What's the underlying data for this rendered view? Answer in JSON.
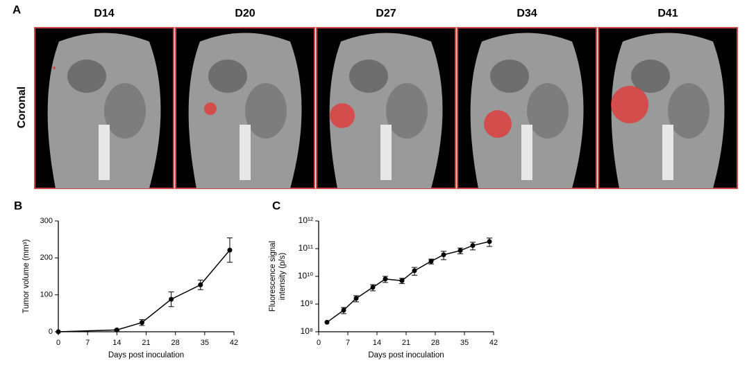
{
  "figure": {
    "panel_a": "A",
    "panel_b": "B",
    "panel_c": "C",
    "view": "Coronal",
    "days": [
      "D14",
      "D20",
      "D27",
      "D34",
      "D41"
    ]
  },
  "chart_data": [
    {
      "type": "line",
      "xlabel": "Days post inoculation",
      "ylabel": [
        "Tumor volume (mm³)"
      ],
      "x": [
        0,
        14,
        20,
        27,
        34,
        41
      ],
      "xlim": [
        0,
        42
      ],
      "xticks": [
        0,
        7,
        14,
        21,
        28,
        35,
        42
      ],
      "ylim": [
        0,
        300
      ],
      "yticks": [
        0,
        100,
        200,
        300
      ],
      "log_y": false,
      "color": "#000000",
      "values": [
        0,
        5,
        25,
        88,
        127,
        221
      ],
      "errors": [
        0,
        2,
        8,
        20,
        13,
        33
      ]
    },
    {
      "type": "line",
      "xlabel": "Days post inoculation",
      "ylabel": [
        "Fluorescence signal",
        "intensity (p/s)"
      ],
      "x": [
        2,
        6,
        9,
        13,
        16,
        20,
        23,
        27,
        30,
        34,
        37,
        41
      ],
      "xlim": [
        0,
        42
      ],
      "xticks": [
        0,
        7,
        14,
        21,
        28,
        35,
        42
      ],
      "ylim": [
        100000000,
        1000000000000
      ],
      "log_y": true,
      "color": "#000000",
      "yticks": [
        {
          "value": 100000000,
          "label": "10⁸"
        },
        {
          "value": 1000000000,
          "label": "10⁹"
        },
        {
          "value": 10000000000,
          "label": "10¹⁰"
        },
        {
          "value": 100000000000,
          "label": "10¹¹"
        },
        {
          "value": 1000000000000,
          "label": "10¹²"
        }
      ],
      "values": [
        220000000,
        600000000,
        1600000000,
        4000000000,
        8000000000,
        7000000000,
        16000000000,
        35000000000,
        60000000000,
        85000000000,
        130000000000,
        180000000000
      ],
      "errors": [
        0,
        150000000,
        400000000,
        1000000000,
        2000000000,
        1500000000,
        5000000000,
        7000000000,
        20000000000,
        20000000000,
        40000000000,
        60000000000
      ]
    }
  ]
}
